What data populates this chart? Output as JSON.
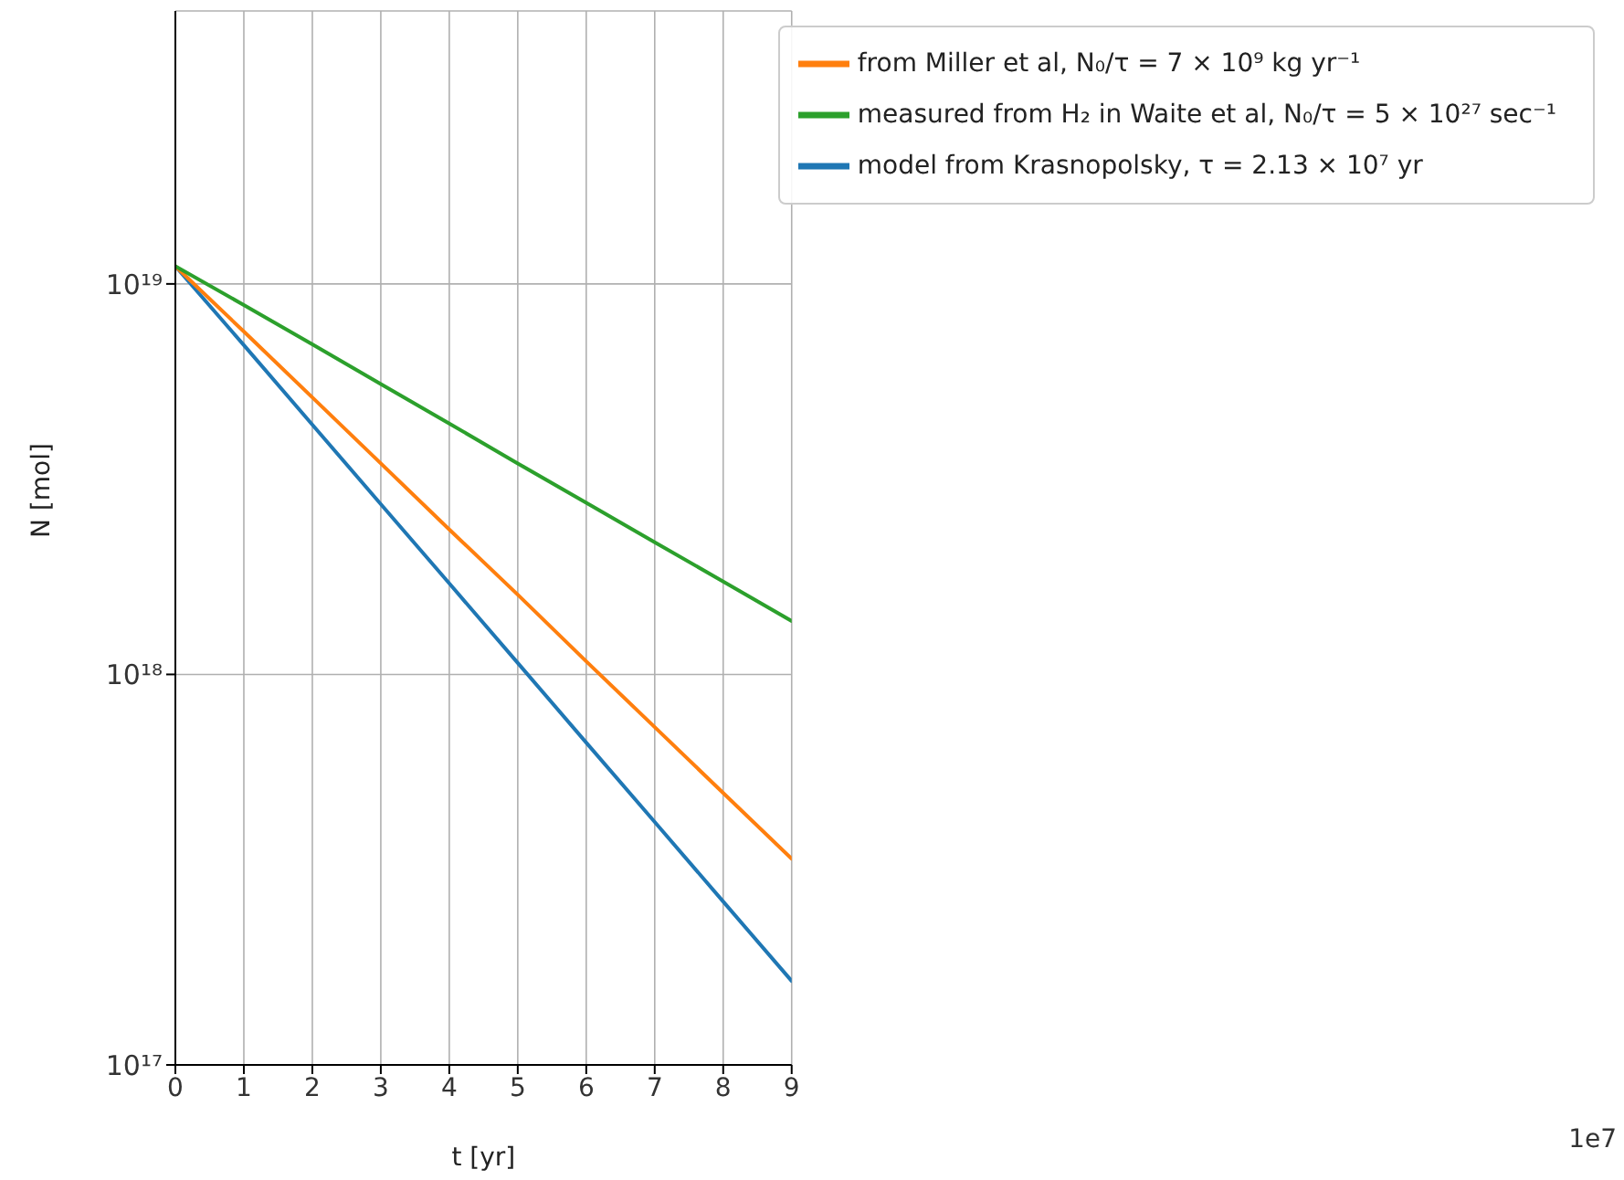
{
  "chart_data": {
    "type": "line",
    "xlabel": "t [yr]",
    "ylabel": "N [mol]",
    "annotations": [
      "1e7"
    ],
    "x": [
      0,
      1,
      2,
      3,
      4,
      5,
      6,
      7,
      8,
      9
    ],
    "xlim": [
      0,
      9
    ],
    "xticks": [
      0,
      1,
      2,
      3,
      4,
      5,
      6,
      7,
      8,
      9
    ],
    "ylim": [
      1e+17,
      5e+19
    ],
    "yticks": [
      {
        "value": 1e+17,
        "label": "10¹⁷"
      },
      {
        "value": 1e+18,
        "label": "10¹⁸"
      },
      {
        "value": 1e+19,
        "label": "10¹⁹"
      }
    ],
    "log": "y",
    "grid": true,
    "legend": "top right",
    "line_style": "solid",
    "marker": "none",
    "series": [
      {
        "name": "model from Krasnopolsky, τ = 2.13 × 10⁷ yr",
        "color": "#1f77b4",
        "values": [
          1.11e+19,
          6.97e+18,
          4.36e+18,
          2.73e+18,
          1.71e+18,
          1.07e+18,
          6.69e+17,
          4.19e+17,
          2.62e+17,
          1.64e+17
        ]
      },
      {
        "name": "from Miller et al, N₀/τ = 7 × 10⁹ kg yr⁻¹",
        "color": "#ff7f0e",
        "values": [
          1.11e+19,
          7.55e+18,
          5.12e+18,
          3.47e+18,
          2.35e+18,
          1.6e+18,
          1.08e+18,
          7.33e+17,
          4.97e+17,
          3.37e+17
        ]
      },
      {
        "name": "measured from H₂ in Waite et al, N₀/τ = 5 × 10²⁷ sec⁻¹",
        "color": "#2ca02c",
        "values": [
          1.11e+19,
          8.83e+18,
          7e+18,
          5.54e+18,
          4.39e+18,
          3.47e+18,
          2.75e+18,
          2.18e+18,
          1.73e+18,
          1.37e+18
        ]
      }
    ]
  }
}
